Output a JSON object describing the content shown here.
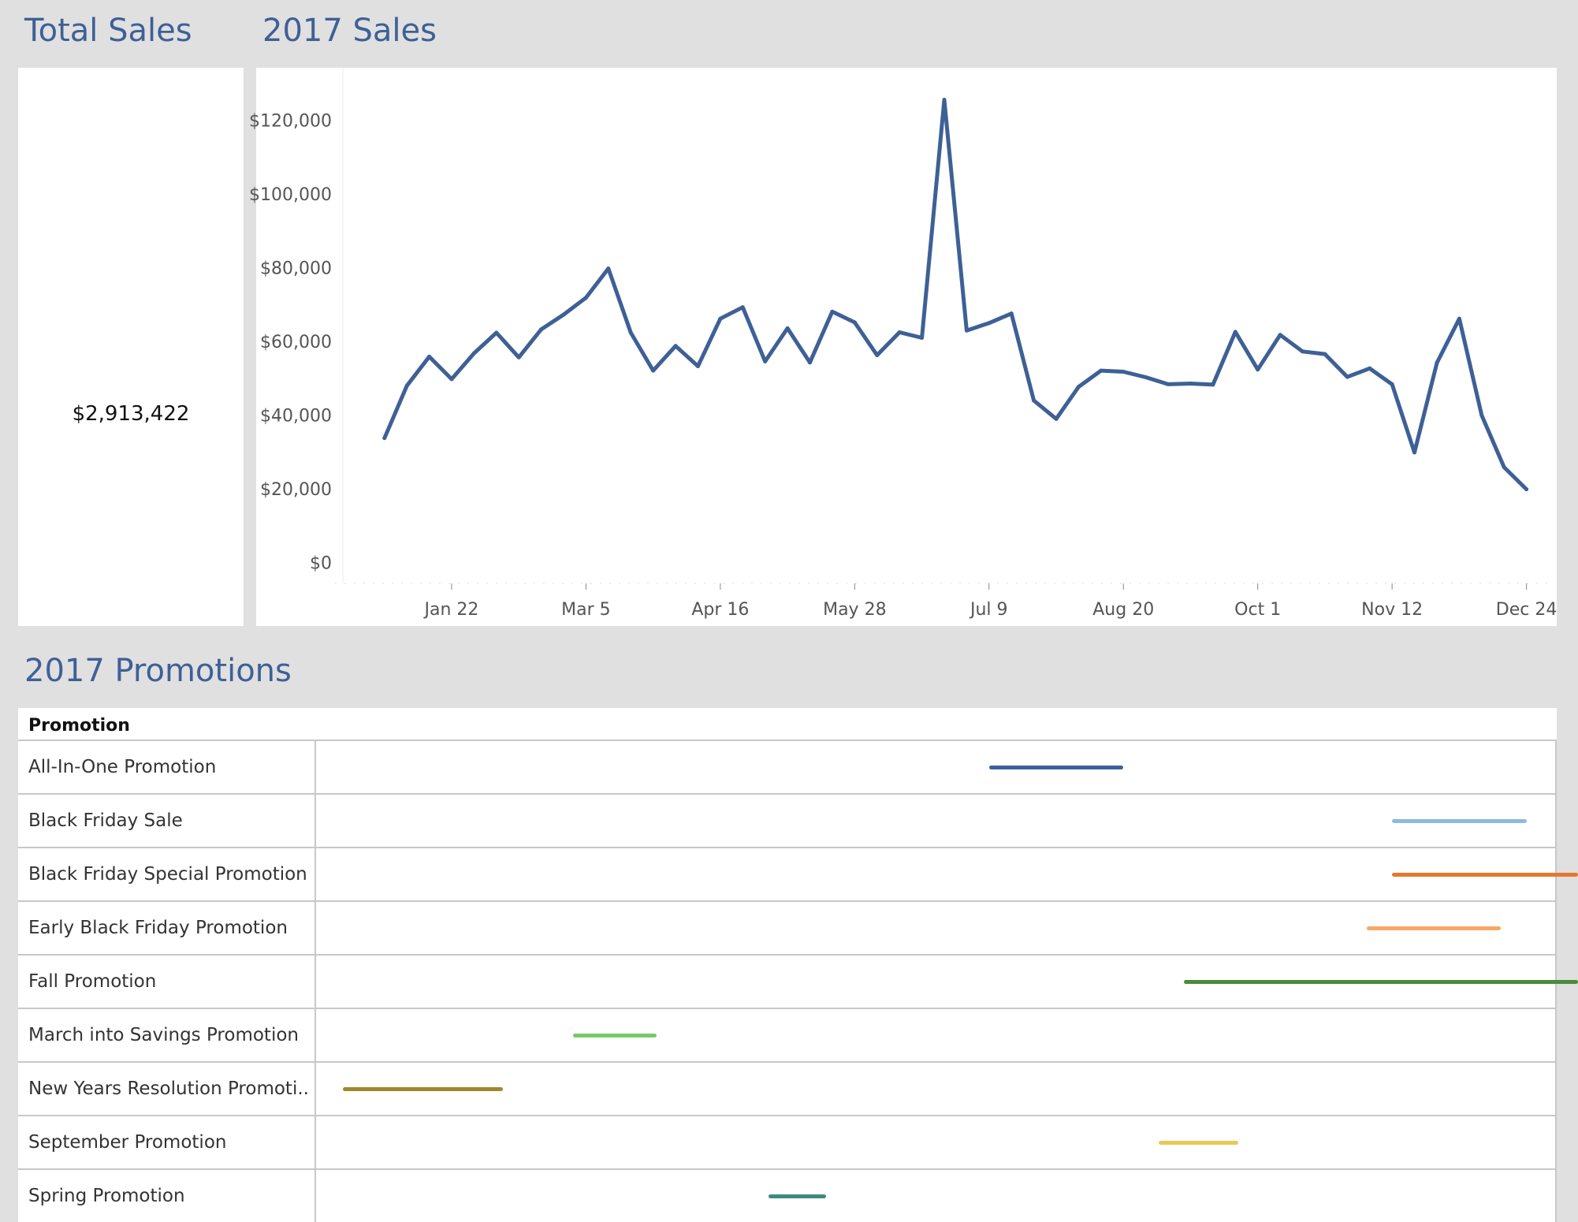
{
  "total_sales": {
    "title": "Total Sales",
    "value": "$2,913,422"
  },
  "sales_2017": {
    "title": "2017 Sales"
  },
  "promotions": {
    "title": "2017 Promotions",
    "column_header": "Promotion"
  },
  "chart_data": [
    {
      "type": "line",
      "title": "2017 Sales",
      "x_type": "date",
      "x_tick_labels": [
        "Jan 22",
        "Mar 5",
        "Apr 16",
        "May 28",
        "Jul 9",
        "Aug 20",
        "Oct 1",
        "Nov 12",
        "Dec 24"
      ],
      "x_ticks": [
        "2017-01-22",
        "2017-03-05",
        "2017-04-16",
        "2017-05-28",
        "2017-07-09",
        "2017-08-20",
        "2017-10-01",
        "2017-11-12",
        "2017-12-24"
      ],
      "xlim": [
        "2016-12-19",
        "2017-12-31"
      ],
      "y_tick_labels": [
        "$0",
        "$20,000",
        "$40,000",
        "$60,000",
        "$80,000",
        "$100,000",
        "$120,000"
      ],
      "y_ticks": [
        0,
        20000,
        40000,
        60000,
        80000,
        100000,
        120000
      ],
      "ylim": [
        -3500,
        130000
      ],
      "grid": false,
      "color": "#3e6096",
      "x": [
        "2017-01-01",
        "2017-01-08",
        "2017-01-15",
        "2017-01-22",
        "2017-01-29",
        "2017-02-05",
        "2017-02-12",
        "2017-02-19",
        "2017-02-26",
        "2017-03-05",
        "2017-03-12",
        "2017-03-19",
        "2017-03-26",
        "2017-04-02",
        "2017-04-09",
        "2017-04-16",
        "2017-04-23",
        "2017-04-30",
        "2017-05-07",
        "2017-05-14",
        "2017-05-21",
        "2017-05-28",
        "2017-06-04",
        "2017-06-11",
        "2017-06-18",
        "2017-06-25",
        "2017-07-02",
        "2017-07-09",
        "2017-07-16",
        "2017-07-23",
        "2017-07-30",
        "2017-08-06",
        "2017-08-13",
        "2017-08-20",
        "2017-08-27",
        "2017-09-03",
        "2017-09-10",
        "2017-09-17",
        "2017-09-24",
        "2017-10-01",
        "2017-10-08",
        "2017-10-15",
        "2017-10-22",
        "2017-10-29",
        "2017-11-05",
        "2017-11-12",
        "2017-11-19",
        "2017-11-26",
        "2017-12-03",
        "2017-12-10",
        "2017-12-17",
        "2017-12-24"
      ],
      "values": [
        33800,
        48000,
        55900,
        49800,
        56800,
        62400,
        55700,
        63300,
        67300,
        71900,
        79800,
        62400,
        52100,
        58800,
        53300,
        66200,
        69300,
        54600,
        63600,
        54300,
        68100,
        65200,
        56300,
        62500,
        61000,
        125600,
        63000,
        65000,
        67600,
        44000,
        39000,
        47700,
        52100,
        51800,
        50300,
        48400,
        48600,
        48300,
        62600,
        52400,
        61800,
        57300,
        56600,
        50400,
        52700,
        48400,
        29900,
        54200,
        66200,
        40000,
        25900,
        19900
      ]
    },
    {
      "type": "gantt",
      "title": "2017 Promotions",
      "column_header": "Promotion",
      "x_type": "date",
      "xlim": [
        "2016-12-19",
        "2017-12-31"
      ],
      "series": [
        {
          "name": "All-In-One Promotion",
          "start": "2017-07-09",
          "end": "2017-08-20",
          "color": "#3e6096"
        },
        {
          "name": "Black Friday Sale",
          "start": "2017-11-12",
          "end": "2017-12-24",
          "color": "#8fb9de"
        },
        {
          "name": "Black Friday Special Promotion",
          "start": "2017-11-12",
          "end": "2018-01-09",
          "color": "#e8772b"
        },
        {
          "name": "Early Black Friday Promotion",
          "start": "2017-11-04",
          "end": "2017-12-16",
          "color": "#f8a865"
        },
        {
          "name": "Fall Promotion",
          "start": "2017-09-08",
          "end": "2018-01-09",
          "color": "#4a8c39"
        },
        {
          "name": "March into Savings Promotion",
          "start": "2017-03-01",
          "end": "2017-03-27",
          "color": "#77c96a"
        },
        {
          "name": "New Years Resolution Promoti..",
          "start": "2016-12-19",
          "end": "2017-02-07",
          "color": "#a0892c"
        },
        {
          "name": "September Promotion",
          "start": "2017-08-31",
          "end": "2017-09-25",
          "color": "#e8c957"
        },
        {
          "name": "Spring Promotion",
          "start": "2017-05-01",
          "end": "2017-05-19",
          "color": "#3d8a80"
        }
      ]
    }
  ]
}
